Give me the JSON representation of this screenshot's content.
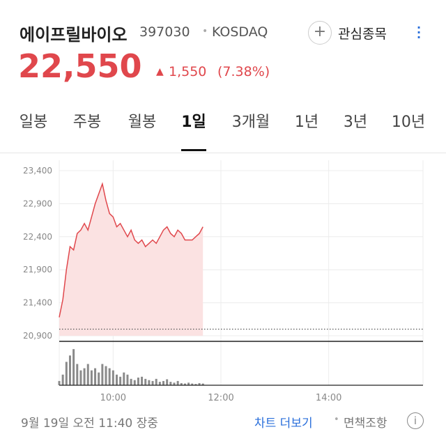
{
  "header": {
    "name": "에이프릴바이오",
    "code": "397030",
    "separator": "•",
    "market": "KOSDAQ",
    "watch_label": "관심종목"
  },
  "price": {
    "current": "22,550",
    "arrow": "▲",
    "change": "1,550",
    "change_pct": "(7.38%)"
  },
  "tabs": {
    "items": [
      "일봉",
      "주봉",
      "월봉",
      "1일",
      "3개월",
      "1년",
      "3년",
      "10년"
    ],
    "selected": 3
  },
  "chart_data": [
    {
      "type": "area",
      "color": "#e0474c",
      "fill": "#fbe2e2",
      "xlim": [
        540,
        945
      ],
      "ylim": [
        20900,
        23400
      ],
      "yticks": [
        {
          "value": 23400,
          "label": "23,400"
        },
        {
          "value": 22900,
          "label": "22,900"
        },
        {
          "value": 22400,
          "label": "22,400"
        },
        {
          "value": 21900,
          "label": "21,900"
        },
        {
          "value": 21400,
          "label": "21,400"
        },
        {
          "value": 20900,
          "label": "20,900"
        }
      ],
      "xticks": [
        {
          "value": 600,
          "label": "10:00"
        },
        {
          "value": 720,
          "label": "12:00"
        },
        {
          "value": 840,
          "label": "14:00"
        }
      ],
      "reference_line": 21000,
      "grid": true,
      "x": [
        540,
        544,
        548,
        552,
        556,
        560,
        564,
        568,
        572,
        576,
        580,
        584,
        588,
        592,
        596,
        600,
        604,
        608,
        612,
        616,
        620,
        624,
        628,
        632,
        636,
        640,
        644,
        648,
        652,
        656,
        660,
        664,
        668,
        672,
        676,
        680,
        684,
        688,
        692,
        696,
        700
      ],
      "series": [
        {
          "values": [
            21180,
            21450,
            21900,
            22250,
            22200,
            22450,
            22500,
            22600,
            22500,
            22700,
            22900,
            23050,
            23200,
            22950,
            22750,
            22700,
            22550,
            22600,
            22500,
            22400,
            22500,
            22350,
            22300,
            22350,
            22250,
            22300,
            22350,
            22300,
            22400,
            22500,
            22550,
            22450,
            22400,
            22500,
            22450,
            22350,
            22350,
            22350,
            22400,
            22450,
            22550
          ]
        }
      ]
    },
    {
      "type": "bar",
      "color": "#8a8a8a",
      "xlim": [
        540,
        945
      ],
      "ylim": [
        0,
        100
      ],
      "x": [
        540,
        544,
        548,
        552,
        556,
        560,
        564,
        568,
        572,
        576,
        580,
        584,
        588,
        592,
        596,
        600,
        604,
        608,
        612,
        616,
        620,
        624,
        628,
        632,
        636,
        640,
        644,
        648,
        652,
        656,
        660,
        664,
        668,
        672,
        676,
        680,
        684,
        688,
        692,
        696,
        700
      ],
      "values": [
        10,
        25,
        55,
        70,
        85,
        50,
        35,
        40,
        50,
        35,
        40,
        30,
        50,
        45,
        40,
        35,
        25,
        20,
        30,
        25,
        15,
        12,
        18,
        20,
        15,
        12,
        10,
        15,
        8,
        10,
        14,
        8,
        6,
        10,
        5,
        4,
        6,
        4,
        3,
        5,
        4
      ]
    }
  ],
  "footer": {
    "timestamp": "9월 19일 오전 11:40 장중",
    "more": "차트 더보기",
    "dot": "•",
    "disclaimer": "면책조항"
  }
}
